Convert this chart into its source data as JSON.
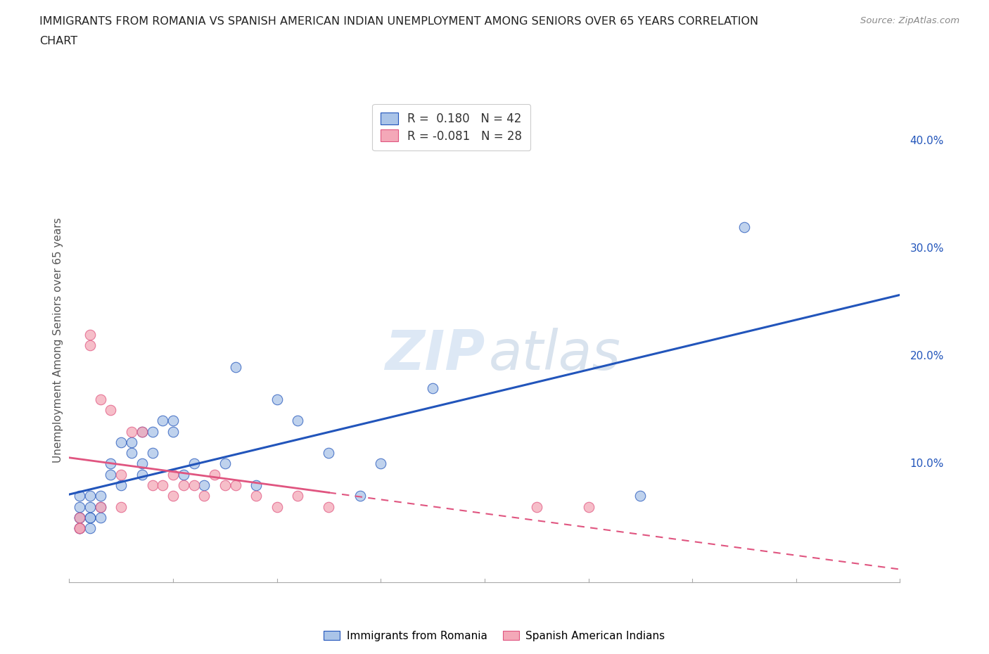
{
  "title_line1": "IMMIGRANTS FROM ROMANIA VS SPANISH AMERICAN INDIAN UNEMPLOYMENT AMONG SENIORS OVER 65 YEARS CORRELATION",
  "title_line2": "CHART",
  "source": "Source: ZipAtlas.com",
  "ylabel": "Unemployment Among Seniors over 65 years",
  "ylabel_right_ticks": [
    "40.0%",
    "30.0%",
    "20.0%",
    "10.0%"
  ],
  "ylabel_right_vals": [
    0.4,
    0.3,
    0.2,
    0.1
  ],
  "xlim": [
    0.0,
    0.08
  ],
  "ylim": [
    -0.01,
    0.44
  ],
  "legend_romania_R": "0.180",
  "legend_romania_N": "42",
  "legend_spanish_R": "-0.081",
  "legend_spanish_N": "28",
  "color_romania": "#aac4e8",
  "color_spanish": "#f4a8b8",
  "trendline_romania_color": "#2255bb",
  "trendline_spanish_color": "#e05580",
  "romania_x": [
    0.001,
    0.001,
    0.001,
    0.001,
    0.001,
    0.001,
    0.002,
    0.002,
    0.002,
    0.002,
    0.002,
    0.003,
    0.003,
    0.003,
    0.004,
    0.004,
    0.005,
    0.005,
    0.006,
    0.006,
    0.007,
    0.007,
    0.007,
    0.008,
    0.008,
    0.009,
    0.01,
    0.01,
    0.011,
    0.012,
    0.013,
    0.015,
    0.016,
    0.018,
    0.02,
    0.022,
    0.025,
    0.028,
    0.03,
    0.035,
    0.055,
    0.065
  ],
  "romania_y": [
    0.04,
    0.05,
    0.06,
    0.07,
    0.05,
    0.04,
    0.05,
    0.06,
    0.07,
    0.05,
    0.04,
    0.06,
    0.07,
    0.05,
    0.09,
    0.1,
    0.12,
    0.08,
    0.11,
    0.12,
    0.13,
    0.09,
    0.1,
    0.13,
    0.11,
    0.14,
    0.13,
    0.14,
    0.09,
    0.1,
    0.08,
    0.1,
    0.19,
    0.08,
    0.16,
    0.14,
    0.11,
    0.07,
    0.1,
    0.17,
    0.07,
    0.32
  ],
  "spanish_x": [
    0.001,
    0.001,
    0.001,
    0.002,
    0.002,
    0.003,
    0.003,
    0.004,
    0.005,
    0.005,
    0.006,
    0.007,
    0.008,
    0.009,
    0.01,
    0.01,
    0.011,
    0.012,
    0.013,
    0.014,
    0.015,
    0.016,
    0.018,
    0.02,
    0.022,
    0.025,
    0.045,
    0.05
  ],
  "spanish_y": [
    0.05,
    0.04,
    0.04,
    0.21,
    0.22,
    0.16,
    0.06,
    0.15,
    0.09,
    0.06,
    0.13,
    0.13,
    0.08,
    0.08,
    0.07,
    0.09,
    0.08,
    0.08,
    0.07,
    0.09,
    0.08,
    0.08,
    0.07,
    0.06,
    0.07,
    0.06,
    0.06,
    0.06
  ]
}
